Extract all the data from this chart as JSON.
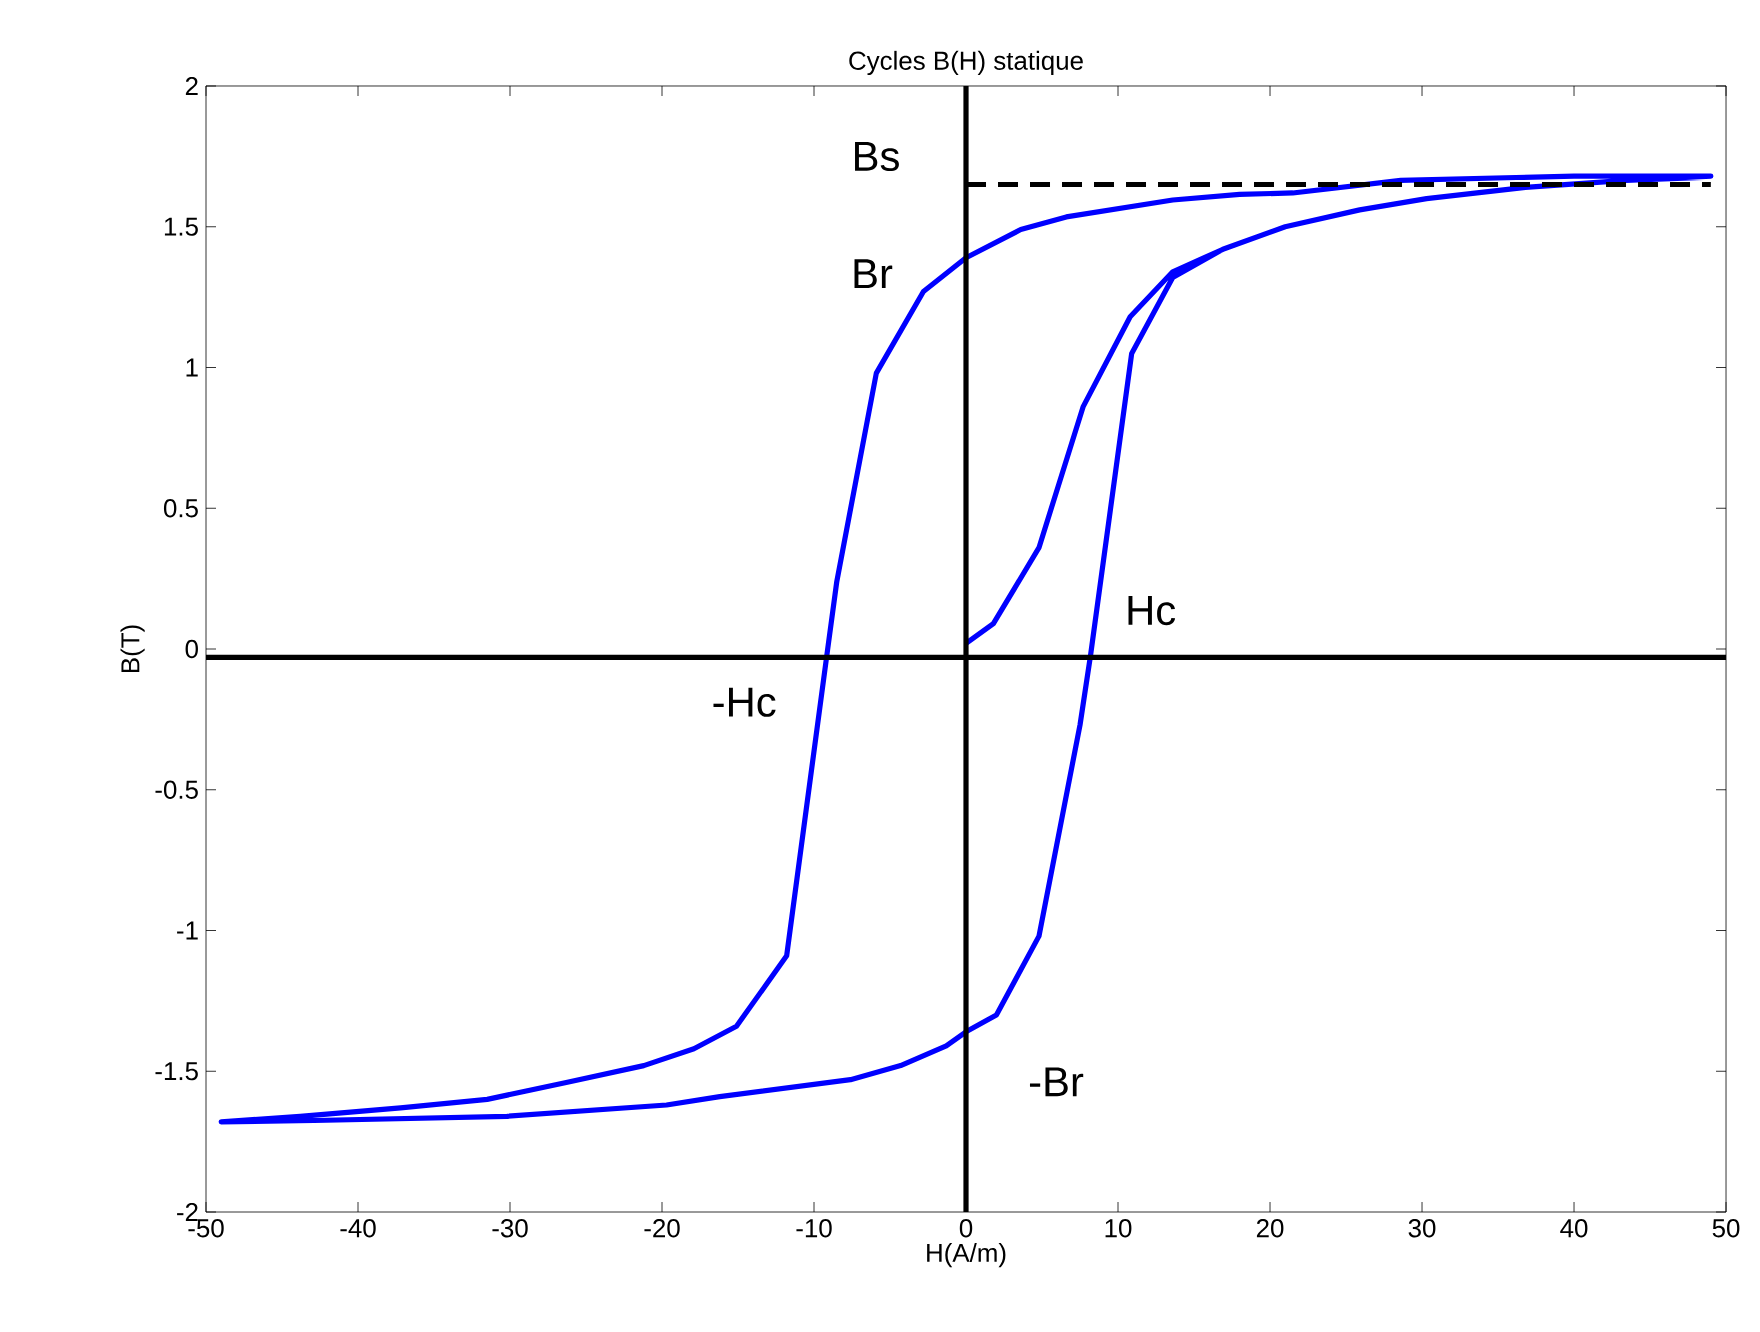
{
  "chart_data": {
    "type": "line",
    "title": "Cycles B(H) statique",
    "xlabel": "H(A/m)",
    "ylabel": "B(T)",
    "xlim": [
      -50,
      50
    ],
    "ylim": [
      -2,
      2
    ],
    "xticks": [
      -50,
      -40,
      -30,
      -20,
      -10,
      0,
      10,
      20,
      30,
      40,
      50
    ],
    "yticks": [
      -2,
      -1.5,
      -1,
      -0.5,
      0,
      0.5,
      1,
      1.5,
      2
    ],
    "grid": false,
    "marker": "none",
    "series": [
      {
        "color": "#0000ff",
        "line_style": "solid",
        "x": [
          0,
          1.8,
          4.8,
          7.7,
          10.8,
          13.6,
          16.9,
          21,
          25.9,
          30.3,
          36.8,
          43.4,
          49,
          40,
          28.6,
          21.5,
          18,
          13.6,
          6.6,
          3.6,
          0,
          -2.8,
          -5.9,
          -8.5,
          -9.2,
          -11.8,
          -15.1,
          -17.9,
          -21.2,
          -26.3,
          -31.5,
          -37.2,
          -43.8,
          -49,
          -42.9,
          -30.2,
          -19.7,
          -16.2,
          -7.6,
          -4.3,
          -1.3,
          0,
          2,
          4.8,
          7.5,
          8.2,
          10.9,
          13.6,
          16.9,
          21,
          25.9,
          30.3,
          36.8,
          43.4,
          48.5
        ],
        "values": [
          0.02,
          0.09,
          0.36,
          0.86,
          1.18,
          1.34,
          1.42,
          1.5,
          1.56,
          1.6,
          1.64,
          1.665,
          1.68,
          1.68,
          1.665,
          1.62,
          1.615,
          1.595,
          1.535,
          1.49,
          1.39,
          1.27,
          0.98,
          0.24,
          -0.04,
          -1.09,
          -1.34,
          -1.42,
          -1.48,
          -1.54,
          -1.6,
          -1.63,
          -1.66,
          -1.68,
          -1.675,
          -1.66,
          -1.62,
          -1.59,
          -1.53,
          -1.48,
          -1.41,
          -1.36,
          -1.3,
          -1.02,
          -0.27,
          -0.02,
          1.05,
          1.32,
          1.42,
          1.5,
          1.56,
          1.6,
          1.64,
          1.665,
          1.675
        ]
      },
      {
        "color": "#000000",
        "line_style": "dashed",
        "x": [
          0,
          49
        ],
        "values": [
          1.65,
          1.65
        ]
      }
    ],
    "ref_lines": [
      {
        "axis": "y",
        "value": -0.03,
        "color": "#000000"
      },
      {
        "axis": "x",
        "value": 0,
        "color": "#000000"
      }
    ],
    "annotations": [
      {
        "text": "Bs",
        "x": 0,
        "y": 1.65
      },
      {
        "text": "Br",
        "x": 0,
        "y": 1.39
      },
      {
        "text": "Hc",
        "x": 8.2,
        "y": -0.02
      },
      {
        "text": "-Hc",
        "x": -9.2,
        "y": -0.04
      },
      {
        "text": "-Br",
        "x": 0,
        "y": -1.36
      }
    ]
  }
}
